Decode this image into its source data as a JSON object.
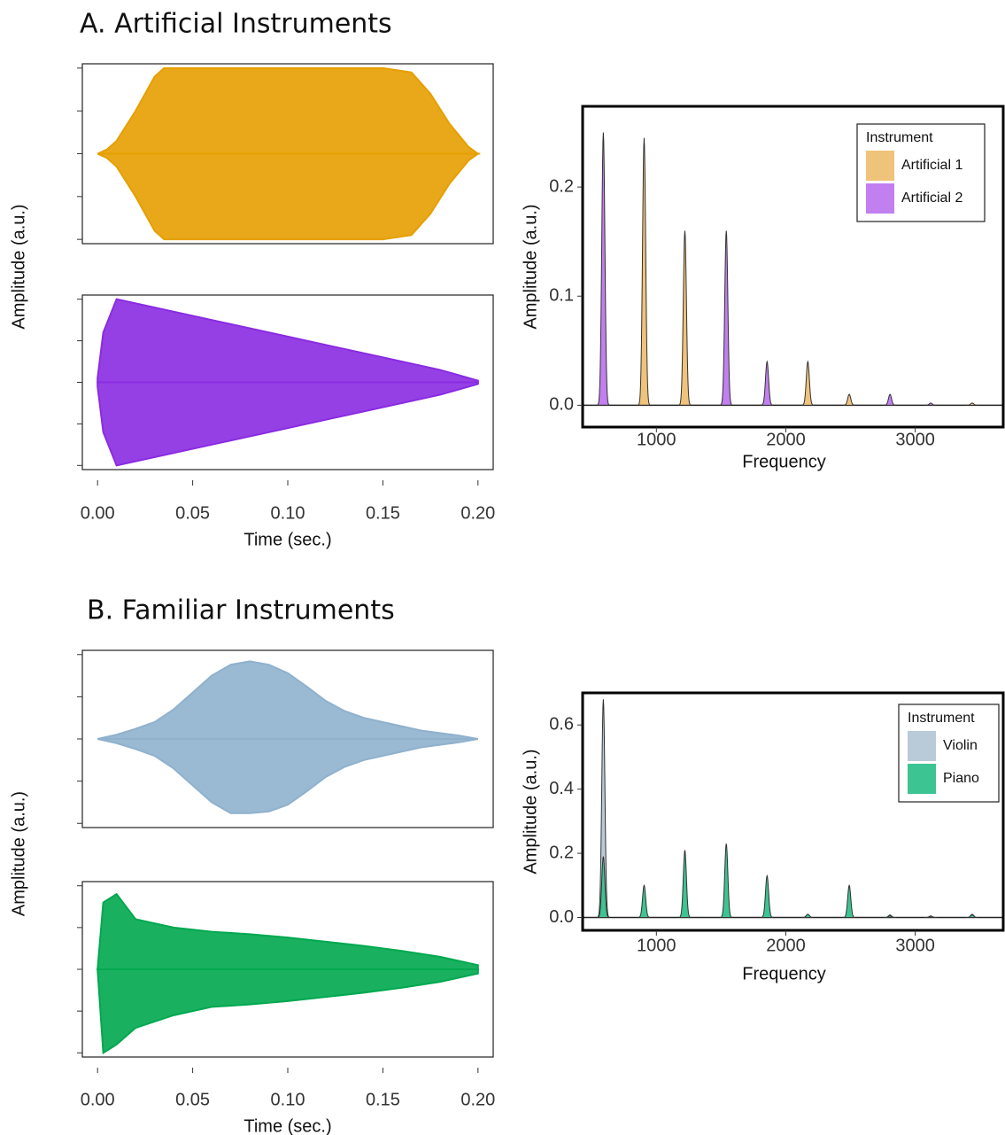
{
  "titles": [
    "A. Artificial Instruments",
    "B. Familiar Instruments"
  ],
  "chart_data": [
    {
      "type": "waveform",
      "ylabel": "Amplitude (a.u.)",
      "xlabel": "Time (sec.)",
      "xlim": [
        -0.008,
        0.208
      ],
      "xticks": [
        {
          "value": 0,
          "label": "0.00"
        },
        {
          "value": 0.05,
          "label": "0.05"
        },
        {
          "value": 0.1,
          "label": "0.10"
        },
        {
          "value": 0.15,
          "label": "0.15"
        },
        {
          "value": 0.2,
          "label": "0.20"
        }
      ],
      "ylim": [
        -1.05,
        1.05
      ],
      "yticks": [
        -1,
        -0.5,
        0,
        0.5,
        1
      ],
      "ytick_labels": false,
      "panels": [
        {
          "color": "#E69F00",
          "x": [
            0,
            0.005,
            0.01,
            0.02,
            0.03,
            0.035,
            0.05,
            0.1,
            0.15,
            0.165,
            0.175,
            0.185,
            0.195,
            0.2
          ],
          "upper": [
            0,
            0.05,
            0.15,
            0.5,
            0.9,
            1,
            1,
            1,
            1,
            0.95,
            0.7,
            0.35,
            0.08,
            0
          ],
          "lower": [
            0,
            -0.05,
            -0.15,
            -0.5,
            -0.9,
            -1,
            -1,
            -1,
            -1,
            -0.95,
            -0.7,
            -0.35,
            -0.08,
            0
          ]
        },
        {
          "color": "#8A2BE2",
          "x": [
            0,
            0.003,
            0.01,
            0.02,
            0.05,
            0.1,
            0.15,
            0.18,
            0.2
          ],
          "upper": [
            0.05,
            0.6,
            1,
            0.95,
            0.8,
            0.55,
            0.3,
            0.15,
            0.02
          ],
          "lower": [
            -0.05,
            -0.6,
            -1,
            -0.95,
            -0.8,
            -0.55,
            -0.3,
            -0.15,
            -0.02
          ]
        }
      ]
    },
    {
      "type": "spectrum",
      "ylabel": "Amplitude (a.u.)",
      "xlabel": "Frequency",
      "xlim": [
        430,
        3680
      ],
      "xticks": [
        1000,
        2000,
        3000
      ],
      "ylim": [
        -0.02,
        0.274
      ],
      "yticks": [
        {
          "value": 0,
          "label": "0.0"
        },
        {
          "value": 0.1,
          "label": "0.1"
        },
        {
          "value": 0.2,
          "label": "0.2"
        }
      ],
      "legend_title": "Instrument",
      "legend": "top-right",
      "series": [
        {
          "name": "Artificial 1",
          "color": "#f0c37a",
          "x": [
            905,
            1220,
            2170,
            2490,
            3440
          ],
          "values": [
            0.245,
            0.16,
            0.04,
            0.01,
            0.002
          ]
        },
        {
          "name": "Artificial 2",
          "color": "#c27ff0",
          "x": [
            590,
            1540,
            1855,
            2805,
            3120
          ],
          "values": [
            0.25,
            0.16,
            0.04,
            0.01,
            0.002
          ]
        }
      ]
    },
    {
      "type": "waveform",
      "ylabel": "Amplitude (a.u.)",
      "xlabel": "Time (sec.)",
      "xlim": [
        -0.008,
        0.208
      ],
      "xticks": [
        {
          "value": 0,
          "label": "0.00"
        },
        {
          "value": 0.05,
          "label": "0.05"
        },
        {
          "value": 0.1,
          "label": "0.10"
        },
        {
          "value": 0.15,
          "label": "0.15"
        },
        {
          "value": 0.2,
          "label": "0.20"
        }
      ],
      "ylim": [
        -1.05,
        1.05
      ],
      "yticks": [
        -1,
        -0.5,
        0,
        0.5,
        1
      ],
      "ytick_labels": false,
      "panels": [
        {
          "color": "#8fb1cd",
          "x": [
            0,
            0.01,
            0.02,
            0.03,
            0.04,
            0.05,
            0.06,
            0.07,
            0.08,
            0.09,
            0.1,
            0.11,
            0.12,
            0.13,
            0.14,
            0.15,
            0.16,
            0.17,
            0.18,
            0.19,
            0.2
          ],
          "upper": [
            0,
            0.05,
            0.12,
            0.2,
            0.35,
            0.55,
            0.75,
            0.88,
            0.92,
            0.88,
            0.78,
            0.62,
            0.45,
            0.33,
            0.25,
            0.2,
            0.15,
            0.1,
            0.07,
            0.04,
            0
          ],
          "lower": [
            0,
            -0.05,
            -0.12,
            -0.2,
            -0.35,
            -0.55,
            -0.75,
            -0.88,
            -0.88,
            -0.86,
            -0.78,
            -0.62,
            -0.45,
            -0.33,
            -0.25,
            -0.2,
            -0.15,
            -0.1,
            -0.07,
            -0.04,
            0
          ]
        },
        {
          "color": "#00a84f",
          "x": [
            0,
            0.003,
            0.01,
            0.02,
            0.04,
            0.06,
            0.08,
            0.1,
            0.12,
            0.14,
            0.16,
            0.18,
            0.2
          ],
          "upper": [
            0,
            0.8,
            0.9,
            0.6,
            0.5,
            0.45,
            0.42,
            0.38,
            0.33,
            0.28,
            0.22,
            0.15,
            0.05
          ],
          "lower": [
            0,
            -1,
            -0.9,
            -0.7,
            -0.55,
            -0.45,
            -0.42,
            -0.38,
            -0.33,
            -0.28,
            -0.22,
            -0.15,
            -0.05
          ]
        }
      ]
    },
    {
      "type": "spectrum",
      "ylabel": "Amplitude (a.u.)",
      "xlabel": "Frequency",
      "xlim": [
        430,
        3680
      ],
      "xticks": [
        1000,
        2000,
        3000
      ],
      "ylim": [
        -0.04,
        0.7
      ],
      "yticks": [
        {
          "value": 0,
          "label": "0.0"
        },
        {
          "value": 0.2,
          "label": "0.2"
        },
        {
          "value": 0.4,
          "label": "0.4"
        },
        {
          "value": 0.6,
          "label": "0.6"
        }
      ],
      "legend_title": "Instrument",
      "legend": "top-right",
      "series": [
        {
          "name": "Violin",
          "color": "#b9cad9",
          "x": [
            590,
            2170,
            2805,
            3120,
            3440
          ],
          "values": [
            0.68,
            0.01,
            0.008,
            0.005,
            0.01
          ]
        },
        {
          "name": "Piano",
          "color": "#3cc492",
          "x": [
            590,
            905,
            1220,
            1540,
            1855,
            2170,
            2490,
            2805,
            3120,
            3440
          ],
          "values": [
            0.19,
            0.1,
            0.21,
            0.23,
            0.13,
            0.01,
            0.1,
            0.005,
            0.004,
            0.008
          ]
        }
      ]
    }
  ]
}
